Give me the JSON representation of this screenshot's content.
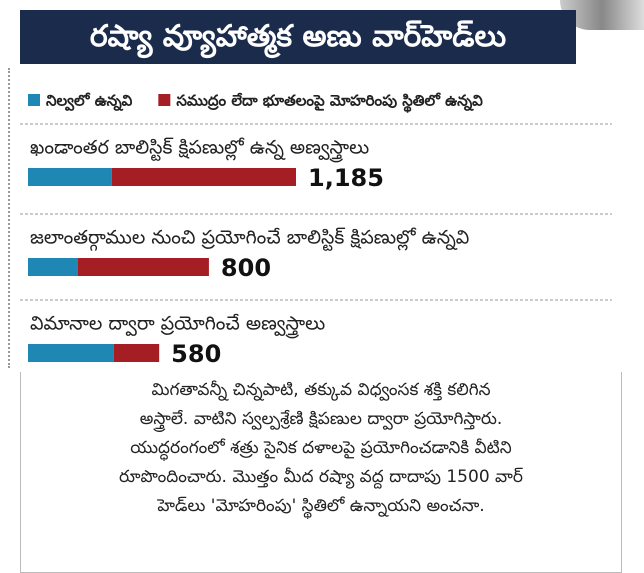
{
  "chart_data": {
    "type": "bar",
    "orientation": "horizontal",
    "stacked": true,
    "title": "రష్యా వ్యూహాత్మక అణు వార్‌హెడ్‌లు",
    "categories": [
      "ఖండాంతర బాలిస్టిక్ క్షిపణుల్లో ఉన్న అణ్వస్త్రాలు",
      "జలాంతర్గాముల నుంచి ప్రయోగించే బాలిస్టిక్ క్షిపణుల్లో ఉన్నవి",
      "విమానాల ద్వారా ప్రయోగించే అణ్వస్త్రాలు"
    ],
    "series": [
      {
        "name": "నిల్వలో ఉన్నవి",
        "color": "#1f87b3",
        "values": [
          371,
          221,
          380
        ]
      },
      {
        "name": "సముద్రం లేదా భూతలంపై మోహరింపు స్థితిలో ఉన్నవి",
        "color": "#a41e24",
        "values": [
          814,
          579,
          200
        ]
      }
    ],
    "totals": [
      {
        "value": 1185,
        "label": "1,185"
      },
      800,
      580
    ],
    "note": [
      "మిగతావన్నీ చిన్నపాటి, తక్కువ విధ్వంసక శక్తి కలిగిన",
      "అస్త్రాలే. వాటిని స్వల్పశ్రేణి క్షిపణుల ద్వారా ప్రయోగిస్తారు.",
      "యుద్ధరంగంలో శత్రు సైనిక దళాలపై ప్రయోగించడానికి వీటిని",
      "రూపొందించారు. మొత్తం మీద రష్యా వద్ద దాదాపు 1500 వార్",
      "హెడ్‌లు 'మోహరింపు' స్థితిలో ఉన్నాయని అంచనా."
    ]
  }
}
